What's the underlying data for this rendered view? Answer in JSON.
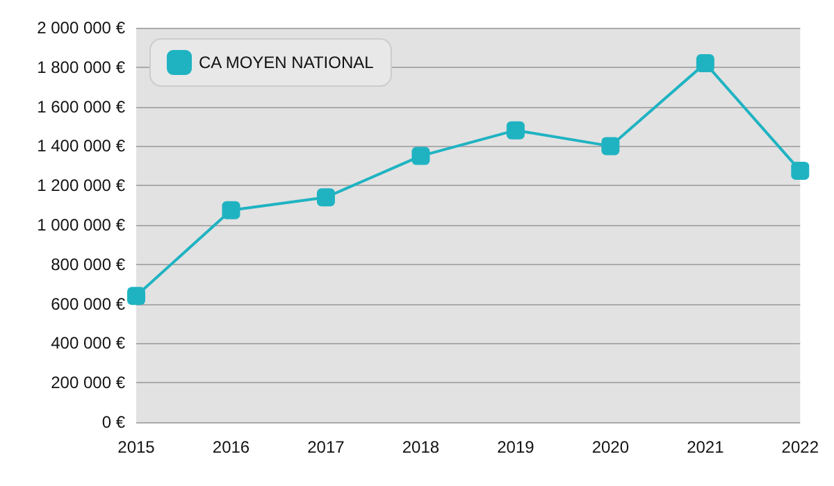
{
  "chart_data": {
    "type": "line",
    "categories": [
      "2015",
      "2016",
      "2017",
      "2018",
      "2019",
      "2020",
      "2021",
      "2022"
    ],
    "series": [
      {
        "name": "CA MOYEN NATIONAL",
        "color": "#1fb3c2",
        "values": [
          640000,
          1075000,
          1140000,
          1350000,
          1480000,
          1400000,
          1820000,
          1275000
        ]
      }
    ],
    "ylim": [
      0,
      2000000
    ],
    "yticks": [
      {
        "value": 0,
        "label": "0 €"
      },
      {
        "value": 200000,
        "label": "200 000 €"
      },
      {
        "value": 400000,
        "label": "400 000 €"
      },
      {
        "value": 600000,
        "label": "600 000 €"
      },
      {
        "value": 800000,
        "label": "800 000 €"
      },
      {
        "value": 1000000,
        "label": "1 000 000 €"
      },
      {
        "value": 1200000,
        "label": "1 200 000 €"
      },
      {
        "value": 1400000,
        "label": "1 400 000 €"
      },
      {
        "value": 1600000,
        "label": "1 600 000 €"
      },
      {
        "value": 1800000,
        "label": "1 800 000 €"
      },
      {
        "value": 2000000,
        "label": "2 000 000 €"
      }
    ],
    "grid": "y",
    "legend": "top left",
    "marker": "square",
    "line_style": "solid"
  }
}
